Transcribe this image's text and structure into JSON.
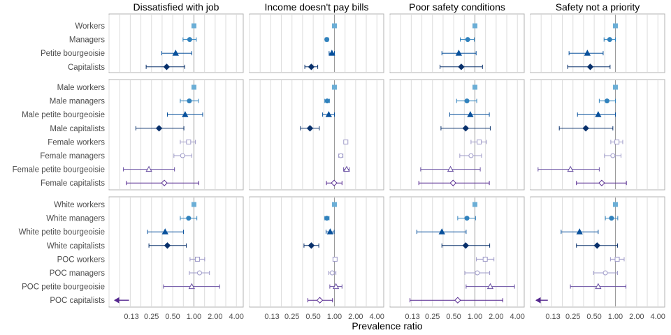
{
  "chart_data": {
    "type": "forest",
    "xlabel": "Prevalence ratio",
    "x_scale": "log2",
    "xlim": [
      0.0625,
      5.0
    ],
    "xticks": [
      0.13,
      0.25,
      0.5,
      1.0,
      2.0,
      4.0
    ],
    "xtick_labels": [
      "0.13",
      "0.25",
      "0.50",
      "1.00",
      "2.00",
      "4.00"
    ],
    "reference_line": 1.0,
    "grid": true,
    "legend": "none",
    "columns": [
      "Dissatisfied with job",
      "Income doesn't pay bills",
      "Poor safety conditions",
      "Safety not a priority"
    ],
    "groups": [
      {
        "rows": [
          {
            "label": "Workers",
            "shape": "square",
            "color": "#6baed6",
            "filled": true,
            "values": [
              {
                "est": 1.0,
                "lo": 1.0,
                "hi": 1.0
              },
              {
                "est": 1.0,
                "lo": 1.0,
                "hi": 1.0
              },
              {
                "est": 1.0,
                "lo": 1.0,
                "hi": 1.0
              },
              {
                "est": 1.0,
                "lo": 1.0,
                "hi": 1.0
              }
            ]
          },
          {
            "label": "Managers",
            "shape": "circle",
            "color": "#3182bd",
            "filled": true,
            "values": [
              {
                "est": 0.87,
                "lo": 0.7,
                "hi": 1.08
              },
              {
                "est": 0.78,
                "lo": 0.74,
                "hi": 0.82
              },
              {
                "est": 0.79,
                "lo": 0.62,
                "hi": 0.98
              },
              {
                "est": 0.83,
                "lo": 0.69,
                "hi": 1.0
              }
            ]
          },
          {
            "label": "Petite bourgeoisie",
            "shape": "triangle",
            "color": "#08519c",
            "filled": true,
            "values": [
              {
                "est": 0.55,
                "lo": 0.35,
                "hi": 0.93
              },
              {
                "est": 0.92,
                "lo": 0.84,
                "hi": 1.0
              },
              {
                "est": 0.59,
                "lo": 0.34,
                "hi": 1.04
              },
              {
                "est": 0.4,
                "lo": 0.22,
                "hi": 0.67
              }
            ]
          },
          {
            "label": "Capitalists",
            "shape": "diamond",
            "color": "#08306b",
            "filled": true,
            "values": [
              {
                "est": 0.41,
                "lo": 0.21,
                "hi": 0.74
              },
              {
                "est": 0.47,
                "lo": 0.38,
                "hi": 0.58
              },
              {
                "est": 0.64,
                "lo": 0.32,
                "hi": 1.28
              },
              {
                "est": 0.44,
                "lo": 0.21,
                "hi": 0.84
              }
            ]
          }
        ]
      },
      {
        "rows": [
          {
            "label": "Male workers",
            "shape": "square",
            "color": "#6baed6",
            "filled": true,
            "values": [
              {
                "est": 1.0,
                "lo": 1.0,
                "hi": 1.0
              },
              {
                "est": 1.0,
                "lo": 1.0,
                "hi": 1.0
              },
              {
                "est": 1.0,
                "lo": 1.0,
                "hi": 1.0
              },
              {
                "est": 1.0,
                "lo": 1.0,
                "hi": 1.0
              }
            ]
          },
          {
            "label": "Male managers",
            "shape": "circle",
            "color": "#3182bd",
            "filled": true,
            "values": [
              {
                "est": 0.86,
                "lo": 0.64,
                "hi": 1.16
              },
              {
                "est": 0.79,
                "lo": 0.73,
                "hi": 0.85
              },
              {
                "est": 0.77,
                "lo": 0.55,
                "hi": 1.06
              },
              {
                "est": 0.76,
                "lo": 0.59,
                "hi": 1.0
              }
            ]
          },
          {
            "label": "Male petite bourgeoisie",
            "shape": "triangle",
            "color": "#08519c",
            "filled": true,
            "values": [
              {
                "est": 0.75,
                "lo": 0.42,
                "hi": 1.33
              },
              {
                "est": 0.83,
                "lo": 0.68,
                "hi": 1.0
              },
              {
                "est": 0.86,
                "lo": 0.44,
                "hi": 1.6
              },
              {
                "est": 0.57,
                "lo": 0.29,
                "hi": 1.0
              }
            ]
          },
          {
            "label": "Male capitalists",
            "shape": "diamond",
            "color": "#08306b",
            "filled": true,
            "values": [
              {
                "est": 0.32,
                "lo": 0.15,
                "hi": 0.72
              },
              {
                "est": 0.45,
                "lo": 0.33,
                "hi": 0.61
              },
              {
                "est": 0.74,
                "lo": 0.33,
                "hi": 1.65
              },
              {
                "est": 0.38,
                "lo": 0.16,
                "hi": 0.92
              }
            ]
          },
          {
            "label": "Female workers",
            "shape": "square",
            "color": "#9e9ac8",
            "filled": false,
            "values": [
              {
                "est": 0.84,
                "lo": 0.64,
                "hi": 1.05
              },
              {
                "est": 1.45,
                "lo": 1.38,
                "hi": 1.5
              },
              {
                "est": 1.15,
                "lo": 0.88,
                "hi": 1.46
              },
              {
                "est": 1.05,
                "lo": 0.86,
                "hi": 1.27
              }
            ]
          },
          {
            "label": "Female managers",
            "shape": "circle",
            "color": "#9e9ac8",
            "filled": false,
            "values": [
              {
                "est": 0.69,
                "lo": 0.52,
                "hi": 0.93
              },
              {
                "est": 1.23,
                "lo": 1.15,
                "hi": 1.32
              },
              {
                "est": 0.88,
                "lo": 0.61,
                "hi": 1.24
              },
              {
                "est": 0.92,
                "lo": 0.7,
                "hi": 1.2
              }
            ]
          },
          {
            "label": "Female petite bourgeoisie",
            "shape": "triangle",
            "color": "#6a51a3",
            "filled": false,
            "values": [
              {
                "est": 0.23,
                "lo": 0.1,
                "hi": 0.53
              },
              {
                "est": 1.49,
                "lo": 1.35,
                "hi": 1.62
              },
              {
                "est": 0.45,
                "lo": 0.17,
                "hi": 1.19
              },
              {
                "est": 0.23,
                "lo": 0.08,
                "hi": 0.59
              }
            ]
          },
          {
            "label": "Female capitalists",
            "shape": "diamond",
            "color": "#54278f",
            "filled": false,
            "values": [
              {
                "est": 0.38,
                "lo": 0.11,
                "hi": 1.17
              },
              {
                "est": 0.99,
                "lo": 0.77,
                "hi": 1.28
              },
              {
                "est": 0.49,
                "lo": 0.16,
                "hi": 1.6
              },
              {
                "est": 0.64,
                "lo": 0.28,
                "hi": 1.43
              }
            ]
          }
        ]
      },
      {
        "rows": [
          {
            "label": "White workers",
            "shape": "square",
            "color": "#6baed6",
            "filled": true,
            "values": [
              {
                "est": 1.0,
                "lo": 1.0,
                "hi": 1.0
              },
              {
                "est": 1.0,
                "lo": 1.0,
                "hi": 1.0
              },
              {
                "est": 1.0,
                "lo": 1.0,
                "hi": 1.0
              },
              {
                "est": 1.0,
                "lo": 1.0,
                "hi": 1.0
              }
            ]
          },
          {
            "label": "White managers",
            "shape": "circle",
            "color": "#3182bd",
            "filled": true,
            "values": [
              {
                "est": 0.84,
                "lo": 0.64,
                "hi": 1.1
              },
              {
                "est": 0.78,
                "lo": 0.73,
                "hi": 0.84
              },
              {
                "est": 0.77,
                "lo": 0.57,
                "hi": 1.02
              },
              {
                "est": 0.88,
                "lo": 0.72,
                "hi": 1.08
              }
            ]
          },
          {
            "label": "White petite bourgeoisie",
            "shape": "triangle",
            "color": "#08519c",
            "filled": true,
            "values": [
              {
                "est": 0.39,
                "lo": 0.22,
                "hi": 0.71
              },
              {
                "est": 0.87,
                "lo": 0.76,
                "hi": 0.99
              },
              {
                "est": 0.34,
                "lo": 0.15,
                "hi": 0.75
              },
              {
                "est": 0.31,
                "lo": 0.17,
                "hi": 0.57
              }
            ]
          },
          {
            "label": "White capitalists",
            "shape": "diamond",
            "color": "#08306b",
            "filled": true,
            "values": [
              {
                "est": 0.42,
                "lo": 0.23,
                "hi": 0.78
              },
              {
                "est": 0.47,
                "lo": 0.37,
                "hi": 0.6
              },
              {
                "est": 0.74,
                "lo": 0.34,
                "hi": 1.62
              },
              {
                "est": 0.55,
                "lo": 0.28,
                "hi": 1.07
              }
            ]
          },
          {
            "label": "POC workers",
            "shape": "square",
            "color": "#9e9ac8",
            "filled": false,
            "values": [
              {
                "est": 1.12,
                "lo": 0.88,
                "hi": 1.42
              },
              {
                "est": 1.02,
                "lo": 0.96,
                "hi": 1.08
              },
              {
                "est": 1.4,
                "lo": 1.05,
                "hi": 1.86
              },
              {
                "est": 1.06,
                "lo": 0.85,
                "hi": 1.33
              }
            ]
          },
          {
            "label": "POC managers",
            "shape": "circle",
            "color": "#9e9ac8",
            "filled": false,
            "values": [
              {
                "est": 1.2,
                "lo": 0.86,
                "hi": 1.66
              },
              {
                "est": 0.93,
                "lo": 0.83,
                "hi": 1.05
              },
              {
                "est": 1.08,
                "lo": 0.72,
                "hi": 1.62
              },
              {
                "est": 0.72,
                "lo": 0.49,
                "hi": 1.07
              }
            ]
          },
          {
            "label": "POC petite bourgeoisie",
            "shape": "triangle",
            "color": "#6a51a3",
            "filled": false,
            "values": [
              {
                "est": 0.93,
                "lo": 0.37,
                "hi": 2.31
              },
              {
                "est": 1.05,
                "lo": 0.86,
                "hi": 1.28
              },
              {
                "est": 1.65,
                "lo": 0.75,
                "hi": 3.64
              },
              {
                "est": 0.57,
                "lo": 0.23,
                "hi": 1.41
              }
            ]
          },
          {
            "label": "POC capitalists",
            "shape": "diamond",
            "color": "#54278f",
            "filled": false,
            "values": [
              {
                "est": null,
                "lo": null,
                "hi": 0.12,
                "offscale": "left"
              },
              {
                "est": 0.62,
                "lo": 0.42,
                "hi": 0.94
              },
              {
                "est": 0.57,
                "lo": 0.12,
                "hi": 2.48
              },
              {
                "est": null,
                "lo": null,
                "hi": 0.11,
                "offscale": "left"
              }
            ]
          }
        ]
      }
    ]
  }
}
